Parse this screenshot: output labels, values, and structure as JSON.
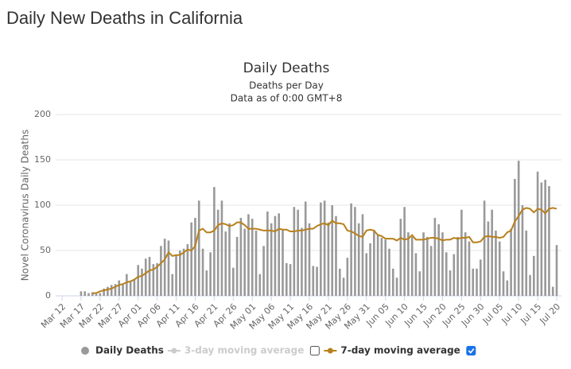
{
  "page_title": "Daily New Deaths in California",
  "chart_data": {
    "type": "bar-line",
    "title": "Daily Deaths",
    "subtitle": [
      "Deaths per Day",
      "Data as of 0:00 GMT+8"
    ],
    "y_label": "Novel Coronavirus Daily Deaths",
    "categories": [
      "Mar 12",
      null,
      null,
      null,
      null,
      "Mar 17",
      null,
      null,
      null,
      null,
      "Mar 22",
      null,
      null,
      null,
      null,
      "Mar 27",
      null,
      null,
      null,
      null,
      "Apr 01",
      null,
      null,
      null,
      null,
      "Apr 06",
      null,
      null,
      null,
      null,
      "Apr 11",
      null,
      null,
      null,
      null,
      "Apr 16",
      null,
      null,
      null,
      null,
      "Apr 21",
      null,
      null,
      null,
      null,
      "Apr 26",
      null,
      null,
      null,
      null,
      "May 01",
      null,
      null,
      null,
      null,
      "May 06",
      null,
      null,
      null,
      null,
      "May 11",
      null,
      null,
      null,
      null,
      "May 16",
      null,
      null,
      null,
      null,
      "May 21",
      null,
      null,
      null,
      null,
      "May 26",
      null,
      null,
      null,
      null,
      "May 31",
      null,
      null,
      null,
      null,
      "Jun 05",
      null,
      null,
      null,
      null,
      "Jun 10",
      null,
      null,
      null,
      null,
      "Jun 15",
      null,
      null,
      null,
      null,
      "Jun 20",
      null,
      null,
      null,
      null,
      "Jun 25",
      null,
      null,
      null,
      null,
      "Jun 30",
      null,
      null,
      null,
      null,
      "Jul 05",
      null,
      null,
      null,
      null,
      "Jul 10",
      null,
      null,
      null,
      null,
      "Jul 15",
      null,
      null,
      null,
      null,
      "Jul 20"
    ],
    "series": [
      {
        "name": "Daily Deaths",
        "color": "#999999",
        "kind": "bar",
        "values": [
          0,
          0,
          0,
          0,
          0,
          5,
          5,
          3,
          4,
          2,
          3,
          8,
          10,
          12,
          13,
          17,
          13,
          24,
          16,
          18,
          34,
          30,
          41,
          43,
          35,
          36,
          55,
          63,
          61,
          24,
          45,
          50,
          52,
          57,
          81,
          86,
          105,
          52,
          28,
          48,
          120,
          95,
          105,
          71,
          80,
          31,
          65,
          86,
          74,
          90,
          85,
          72,
          24,
          55,
          93,
          80,
          88,
          91,
          73,
          36,
          35,
          98,
          95,
          75,
          104,
          80,
          33,
          32,
          103,
          105,
          81,
          100,
          88,
          30,
          20,
          42,
          102,
          98,
          80,
          90,
          47,
          58,
          71,
          68,
          64,
          62,
          52,
          30,
          20,
          85,
          98,
          70,
          65,
          47,
          27,
          70,
          65,
          55,
          86,
          79,
          70,
          48,
          28,
          46,
          65,
          95,
          70,
          60,
          30,
          30,
          40,
          105,
          82,
          95,
          72,
          60,
          27,
          17,
          74,
          129,
          149,
          100,
          72,
          23,
          44,
          137,
          125,
          128,
          121,
          10,
          56
        ]
      },
      {
        "name": "3-day moving average",
        "color": "#cccccc",
        "kind": "line",
        "visible": false
      },
      {
        "name": "7-day moving average",
        "color": "#b8801c",
        "kind": "line",
        "visible": true,
        "values": [
          null,
          null,
          null,
          null,
          null,
          null,
          null,
          null,
          3,
          3,
          5,
          6,
          7,
          8,
          10,
          12,
          13,
          15,
          16,
          18,
          21,
          22,
          25,
          28,
          29,
          32,
          36,
          40,
          48,
          44,
          45,
          45,
          48,
          51,
          50,
          55,
          72,
          74,
          70,
          70,
          72,
          78,
          80,
          79,
          77,
          78,
          81,
          81,
          78,
          74,
          74,
          74,
          73,
          72,
          72,
          72,
          71,
          74,
          73,
          73,
          71,
          71,
          72,
          72,
          73,
          74,
          74,
          77,
          79,
          80,
          78,
          83,
          80,
          80,
          79,
          72,
          71,
          69,
          66,
          65,
          72,
          73,
          72,
          67,
          66,
          63,
          63,
          63,
          61,
          64,
          62,
          63,
          67,
          62,
          62,
          62,
          63,
          64,
          64,
          63,
          61,
          62,
          62,
          64,
          63,
          64,
          64,
          65,
          59,
          59,
          60,
          65,
          66,
          65,
          65,
          64,
          65,
          70,
          72,
          82,
          88,
          95,
          97,
          96,
          92,
          96,
          95,
          91,
          96,
          97,
          96
        ]
      }
    ],
    "ylim": [
      0,
      200
    ],
    "yticks": [
      0,
      50,
      100,
      150,
      200
    ],
    "grid": true,
    "legend": "bottom"
  }
}
